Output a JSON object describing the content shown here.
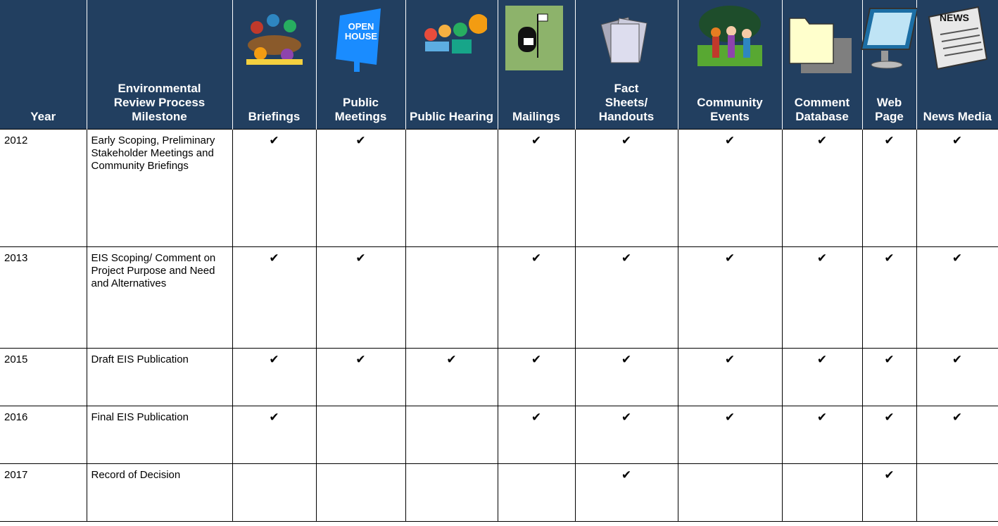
{
  "table": {
    "columns": [
      {
        "label": "Year"
      },
      {
        "label": "Environmental Review Process Milestone"
      },
      {
        "label": "Briefings"
      },
      {
        "label": "Public Meetings",
        "icon_text": [
          "OPEN",
          "HOUSE"
        ]
      },
      {
        "label": "Public Hearing"
      },
      {
        "label": "Mailings"
      },
      {
        "label": "Fact Sheets/ Handouts"
      },
      {
        "label": "Community Events"
      },
      {
        "label": "Comment Database"
      },
      {
        "label": "Web Page"
      },
      {
        "label": "News Media",
        "icon_text": [
          "NEWS"
        ]
      }
    ],
    "rows": [
      [
        "2012",
        "Early Scoping, Preliminary Stakeholder Meetings and Community Briefings",
        "✔",
        "✔",
        null,
        "✔",
        "✔",
        "✔",
        "✔",
        "✔",
        "✔"
      ],
      [
        "2013",
        "EIS Scoping/ Comment on Project Purpose and Need and Alternatives",
        "✔",
        "✔",
        null,
        "✔",
        "✔",
        "✔",
        "✔",
        "✔",
        "✔"
      ],
      [
        "2015",
        "Draft EIS Publication",
        "✔",
        "✔",
        "✔",
        "✔",
        "✔",
        "✔",
        "✔",
        "✔",
        "✔"
      ],
      [
        "2016",
        "Final EIS Publication",
        "✔",
        null,
        null,
        "✔",
        "✔",
        "✔",
        "✔",
        "✔",
        "✔"
      ],
      [
        "2017",
        "Record of Decision",
        null,
        null,
        null,
        null,
        "✔",
        null,
        null,
        "✔",
        null
      ]
    ]
  }
}
